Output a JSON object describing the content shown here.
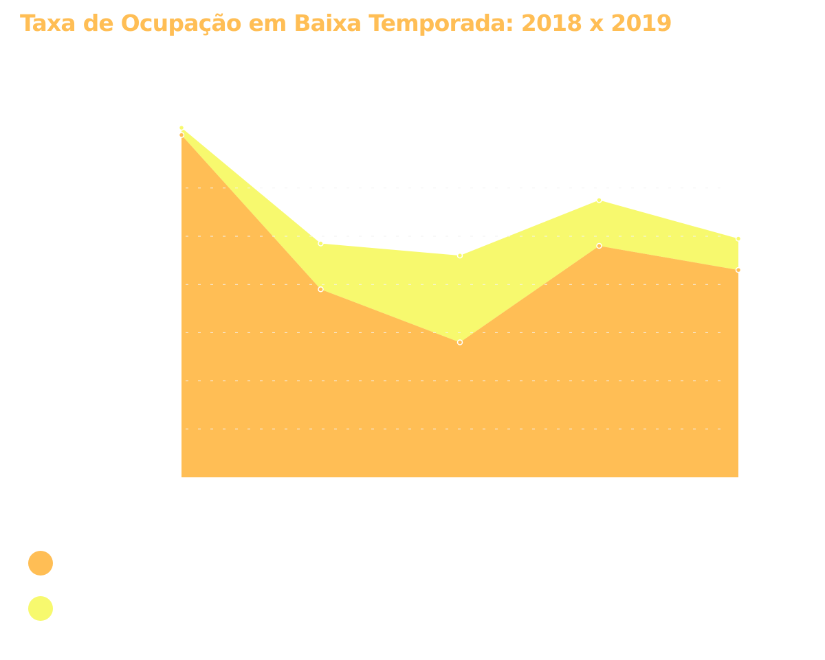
{
  "chart_data": {
    "type": "area",
    "title": "Taxa de Ocupação em Baixa Temporada: 2018 x 2019",
    "stacked": true,
    "x": [
      1,
      2,
      3,
      4,
      5
    ],
    "ylim": [
      0,
      72
    ],
    "gridlines_y": [
      10,
      20,
      30,
      40,
      50,
      60
    ],
    "grid": "dashed horizontal",
    "series": [
      {
        "color": "#FFBE55",
        "values": [
          71,
          39,
          28,
          48,
          43
        ]
      },
      {
        "color": "#F7F96E",
        "values": [
          1.5,
          9.5,
          18,
          9.5,
          6.5
        ]
      }
    ]
  },
  "colors": {
    "title": "#FFBE55",
    "gridline": "#f2f2f2",
    "marker_stroke": "#ffffff"
  }
}
